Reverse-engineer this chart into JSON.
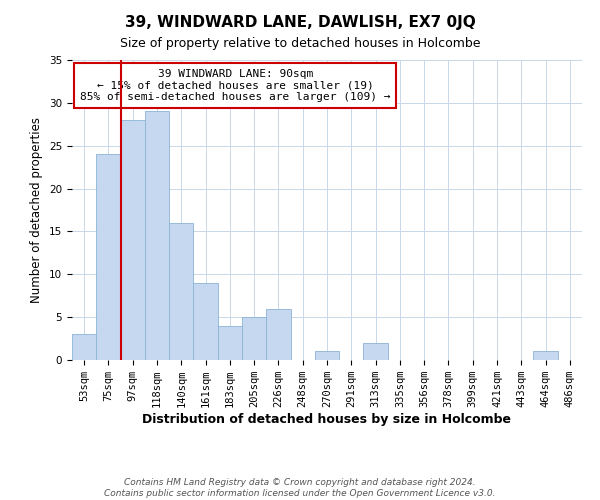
{
  "title": "39, WINDWARD LANE, DAWLISH, EX7 0JQ",
  "subtitle": "Size of property relative to detached houses in Holcombe",
  "xlabel": "Distribution of detached houses by size in Holcombe",
  "ylabel": "Number of detached properties",
  "bin_labels": [
    "53sqm",
    "75sqm",
    "97sqm",
    "118sqm",
    "140sqm",
    "161sqm",
    "183sqm",
    "205sqm",
    "226sqm",
    "248sqm",
    "270sqm",
    "291sqm",
    "313sqm",
    "335sqm",
    "356sqm",
    "378sqm",
    "399sqm",
    "421sqm",
    "443sqm",
    "464sqm",
    "486sqm"
  ],
  "bar_values": [
    3,
    24,
    28,
    29,
    16,
    9,
    4,
    5,
    6,
    0,
    1,
    0,
    2,
    0,
    0,
    0,
    0,
    0,
    0,
    1,
    0
  ],
  "bar_color": "#c5d8f0",
  "bar_edge_color": "#8ab4d4",
  "vline_color": "#cc0000",
  "vline_x_index": 1.5,
  "ylim": [
    0,
    35
  ],
  "yticks": [
    0,
    5,
    10,
    15,
    20,
    25,
    30,
    35
  ],
  "annotation_text": "39 WINDWARD LANE: 90sqm\n← 15% of detached houses are smaller (19)\n85% of semi-detached houses are larger (109) →",
  "annotation_box_color": "#ffffff",
  "annotation_box_edge_color": "#cc0000",
  "footer_text": "Contains HM Land Registry data © Crown copyright and database right 2024.\nContains public sector information licensed under the Open Government Licence v3.0.",
  "background_color": "#ffffff",
  "grid_color": "#c8d8e8",
  "title_fontsize": 11,
  "subtitle_fontsize": 9,
  "ylabel_fontsize": 8.5,
  "xlabel_fontsize": 9,
  "tick_fontsize": 7.5,
  "annotation_fontsize": 8,
  "footer_fontsize": 6.5
}
